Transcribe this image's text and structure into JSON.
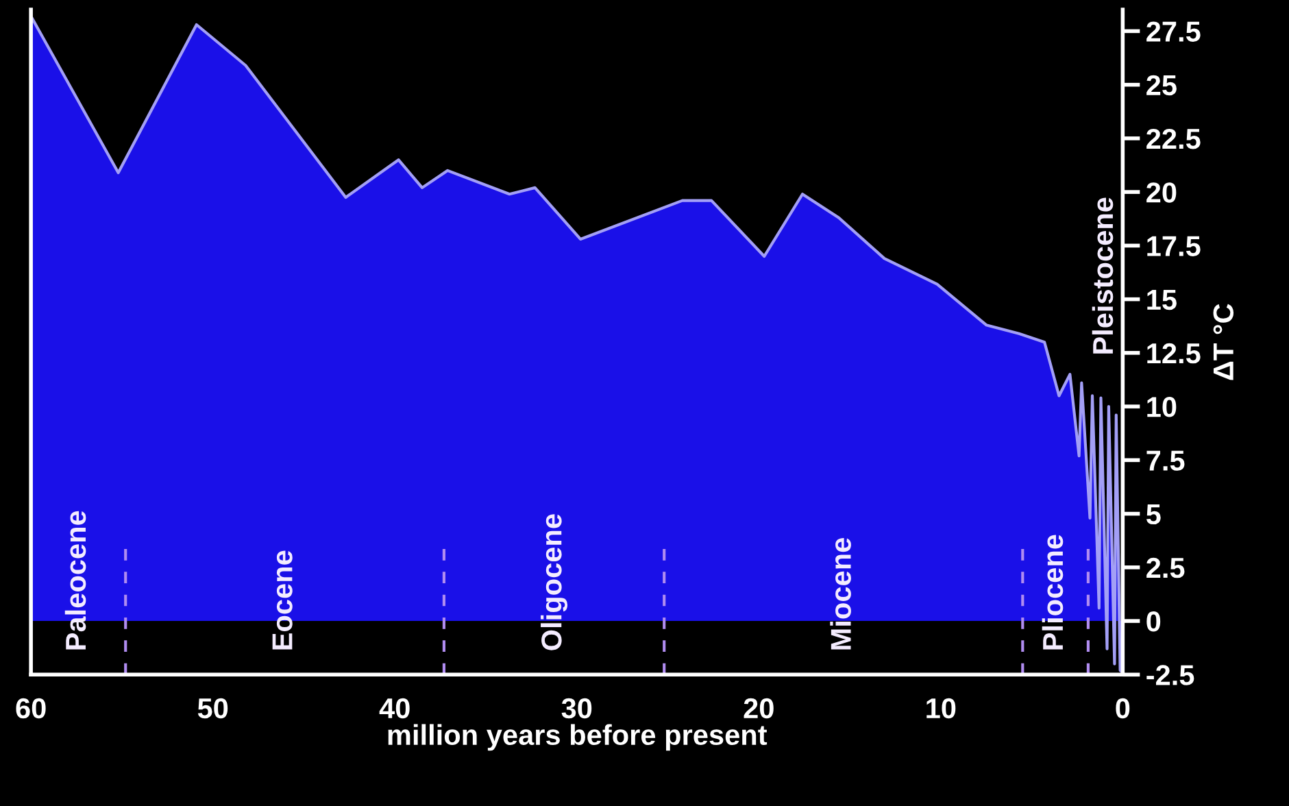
{
  "chart_data": {
    "type": "area",
    "xlabel": "million years before present",
    "ylabel": "ΔT °C",
    "series": [
      {
        "color": "#1a10e8",
        "x": [
          60,
          55.2,
          50.9,
          48.2,
          42.7,
          39.8,
          38.5,
          37.1,
          33.7,
          32.3,
          29.8,
          24.2,
          22.6,
          19.7,
          17.6,
          15.6,
          13.1,
          10.2,
          7.5,
          5.7,
          4.3,
          3.5,
          2.9,
          2.4,
          2.26,
          1.8,
          1.67,
          1.3,
          1.2,
          0.86,
          0.77,
          0.45,
          0.36,
          0.14,
          0
        ],
        "values": [
          28.2,
          20.9,
          27.8,
          25.9,
          19.75,
          21.5,
          20.2,
          21.0,
          19.9,
          20.2,
          17.8,
          19.6,
          19.6,
          17.0,
          19.9,
          18.8,
          16.9,
          15.7,
          13.8,
          13.4,
          13.0,
          10.5,
          11.5,
          7.7,
          11.1,
          4.8,
          10.5,
          0.6,
          10.4,
          -1.3,
          10.0,
          -2.0,
          9.6,
          -2.3,
          -2.4
        ]
      }
    ],
    "xlim": [
      60,
      0
    ],
    "xticks": [
      60,
      50,
      40,
      30,
      20,
      10,
      0
    ],
    "ylim": [
      -2.5,
      28.5
    ],
    "yticks": [
      27.5,
      25,
      22.5,
      20,
      17.5,
      15,
      12.5,
      10,
      7.5,
      5,
      2.5,
      0,
      -2.5
    ],
    "ref_lines": [
      {
        "axis": "x",
        "value": 54.8,
        "line_style": "dashed",
        "color": "#b08cf0"
      },
      {
        "axis": "x",
        "value": 37.3,
        "line_style": "dashed",
        "color": "#b08cf0"
      },
      {
        "axis": "x",
        "value": 25.2,
        "line_style": "dashed",
        "color": "#b08cf0"
      },
      {
        "axis": "x",
        "value": 5.5,
        "line_style": "dashed",
        "color": "#b08cf0"
      },
      {
        "axis": "x",
        "value": 1.9,
        "line_style": "dashed",
        "color": "#b08cf0"
      }
    ],
    "annotations": [
      "Paleocene",
      "Eocene",
      "Oligocene",
      "Miocene",
      "Pliocene",
      "Pleistocene"
    ],
    "grid": false,
    "legend": false
  }
}
